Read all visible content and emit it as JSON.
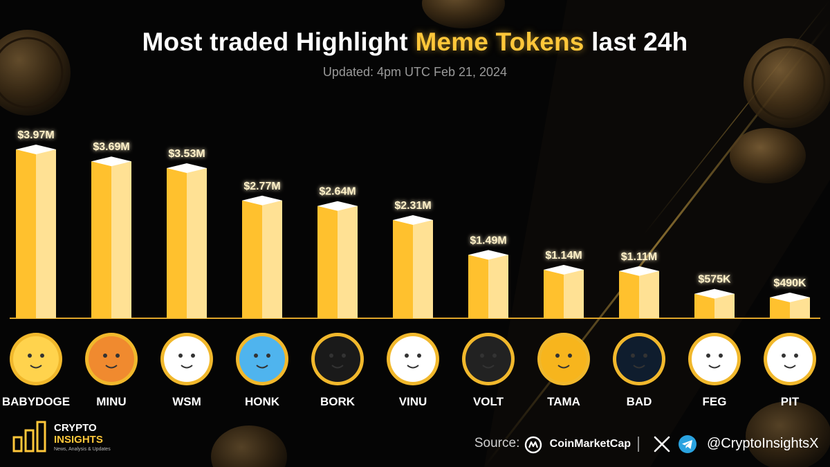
{
  "header": {
    "title_part1": "Most traded Highlight",
    "title_highlight": "Meme Tokens",
    "title_part2": "last 24h",
    "subtitle": "Updated: 4pm UTC Feb 21, 2024"
  },
  "chart_data": {
    "type": "bar",
    "title": "Most traded Highlight Meme Tokens last 24h",
    "categories": [
      "BABYDOGE",
      "MINU",
      "WSM",
      "HONK",
      "BORK",
      "VINU",
      "VOLT",
      "TAMA",
      "BAD",
      "FEG",
      "PIT"
    ],
    "values": [
      3.97,
      3.69,
      3.53,
      2.77,
      2.64,
      2.31,
      1.49,
      1.14,
      1.11,
      0.575,
      0.49
    ],
    "value_labels": [
      "$3.97M",
      "$3.69M",
      "$3.53M",
      "$2.77M",
      "$2.64M",
      "$2.31M",
      "$1.49M",
      "$1.14M",
      "$1.11M",
      "$575K",
      "$490K"
    ],
    "unit": "USD millions",
    "grid": false,
    "legend": "none",
    "colors": {
      "bar_front": "#ffc12e",
      "bar_side": "#ffe194",
      "bar_top": "#ffffff",
      "label": "#fff1c8",
      "baseline": "#e0a62a"
    }
  },
  "tokens": [
    {
      "name": "BABYDOGE",
      "logo_bg": "#ffd34d",
      "ring": "#f1b82c"
    },
    {
      "name": "MINU",
      "logo_bg": "#f08a2f",
      "ring": "#f1b82c"
    },
    {
      "name": "WSM",
      "logo_bg": "#ffffff",
      "ring": "#f1b82c"
    },
    {
      "name": "HONK",
      "logo_bg": "#4fb4ee",
      "ring": "#f1b82c"
    },
    {
      "name": "BORK",
      "logo_bg": "#1a1a1a",
      "ring": "#f1b82c"
    },
    {
      "name": "VINU",
      "logo_bg": "#ffffff",
      "ring": "#f1b82c"
    },
    {
      "name": "VOLT",
      "logo_bg": "#222222",
      "ring": "#f1b82c"
    },
    {
      "name": "TAMA",
      "logo_bg": "#f7b51d",
      "ring": "#f1b82c"
    },
    {
      "name": "BAD",
      "logo_bg": "#0f1d2e",
      "ring": "#f1b82c"
    },
    {
      "name": "FEG",
      "logo_bg": "#ffffff",
      "ring": "#f1b82c"
    },
    {
      "name": "PIT",
      "logo_bg": "#ffffff",
      "ring": "#f1b82c"
    }
  ],
  "footer": {
    "brand_line1": "CRYPTO",
    "brand_line2": "INSIGHTS",
    "brand_tagline": "News, Analysis & Updates",
    "source_label": "Source:",
    "source_name": "CoinMarketCap",
    "social_handle": "@CryptoInsightsX",
    "icons": [
      "coinmarketcap-icon",
      "x-icon",
      "telegram-icon"
    ]
  }
}
